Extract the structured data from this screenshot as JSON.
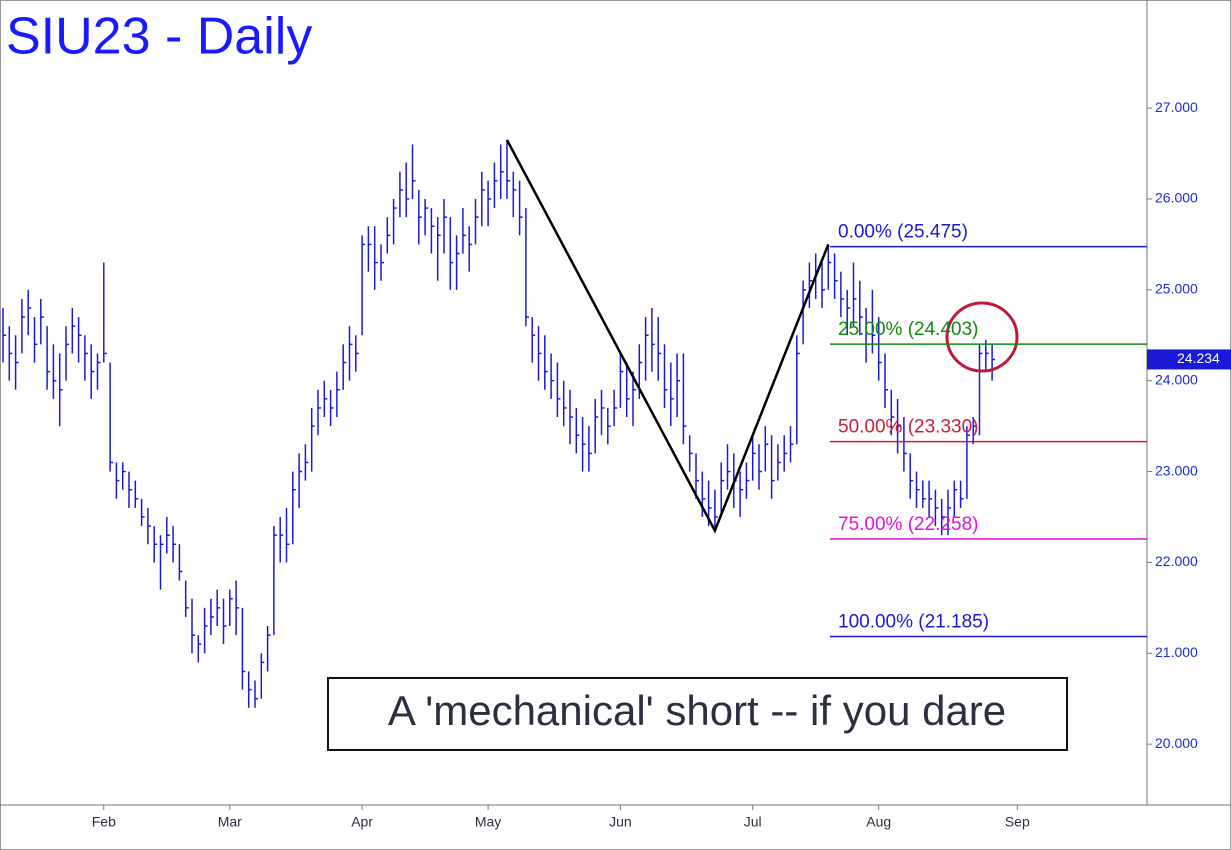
{
  "chart_data": {
    "type": "ohlc",
    "title": "SIU23 - Daily",
    "annotation": "A 'mechanical' short -- if you dare",
    "color": "#1a1ad6",
    "categories": [
      null,
      null,
      null,
      null,
      null,
      null,
      null,
      null,
      null,
      null,
      null,
      null,
      null,
      null,
      null,
      null,
      "Feb",
      null,
      null,
      null,
      null,
      null,
      null,
      null,
      null,
      null,
      null,
      null,
      null,
      null,
      null,
      null,
      null,
      null,
      null,
      null,
      "Mar",
      null,
      null,
      null,
      null,
      null,
      null,
      null,
      null,
      null,
      null,
      null,
      null,
      null,
      null,
      null,
      null,
      null,
      null,
      null,
      null,
      "Apr",
      null,
      null,
      null,
      null,
      null,
      null,
      null,
      null,
      null,
      null,
      null,
      null,
      null,
      null,
      null,
      null,
      null,
      null,
      null,
      "May",
      null,
      null,
      null,
      null,
      null,
      null,
      null,
      null,
      null,
      null,
      null,
      null,
      null,
      null,
      null,
      null,
      null,
      null,
      null,
      null,
      "Jun",
      null,
      null,
      null,
      null,
      null,
      null,
      null,
      null,
      null,
      null,
      null,
      null,
      null,
      null,
      null,
      null,
      null,
      null,
      null,
      null,
      "Jul",
      null,
      null,
      null,
      null,
      null,
      null,
      null,
      null,
      null,
      null,
      null,
      null,
      null,
      null,
      null,
      null,
      null,
      null,
      null,
      "Aug",
      null,
      null,
      null,
      null,
      null,
      null,
      null,
      null,
      null,
      null,
      null,
      null,
      null,
      null,
      null,
      null,
      null,
      null,
      null,
      null,
      null,
      "Sep"
    ],
    "high": [
      24.8,
      24.6,
      24.5,
      24.9,
      25.0,
      24.7,
      24.9,
      24.6,
      24.4,
      24.3,
      24.6,
      24.8,
      24.7,
      24.5,
      24.4,
      24.3,
      25.3,
      24.2,
      23.1,
      23.1,
      23.0,
      22.9,
      22.7,
      22.6,
      22.4,
      22.3,
      22.5,
      22.4,
      22.2,
      21.8,
      21.6,
      21.2,
      21.5,
      21.6,
      21.7,
      21.6,
      21.7,
      21.8,
      21.5,
      20.8,
      20.7,
      21.0,
      21.3,
      22.4,
      22.5,
      22.6,
      23.0,
      23.2,
      23.3,
      23.7,
      23.9,
      24.0,
      23.9,
      24.1,
      24.4,
      24.6,
      24.5,
      25.6,
      25.7,
      25.7,
      25.5,
      25.8,
      26.0,
      26.3,
      26.4,
      26.6,
      26.1,
      26.0,
      25.9,
      25.8,
      26.0,
      25.8,
      25.6,
      25.9,
      25.7,
      26.0,
      26.3,
      26.2,
      26.4,
      26.6,
      26.65,
      26.3,
      26.2,
      25.9,
      24.7,
      24.6,
      24.5,
      24.3,
      24.2,
      24.0,
      23.9,
      23.7,
      23.6,
      23.5,
      23.8,
      23.9,
      23.7,
      23.9,
      24.3,
      24.2,
      24.1,
      24.4,
      24.7,
      24.8,
      24.7,
      24.4,
      24.2,
      24.3,
      24.3,
      23.4,
      23.2,
      23.0,
      22.9,
      22.8,
      23.1,
      23.3,
      23.2,
      23.0,
      23.1,
      23.4,
      23.3,
      23.5,
      23.4,
      23.3,
      23.4,
      23.5,
      24.5,
      25.1,
      25.3,
      25.4,
      25.3,
      25.5,
      25.4,
      25.2,
      25.0,
      25.3,
      25.1,
      24.8,
      25.0,
      24.7,
      24.3,
      23.9,
      23.8,
      23.6,
      23.2,
      23.0,
      22.9,
      22.9,
      22.8,
      22.7,
      22.8,
      22.9,
      22.9,
      23.5,
      23.6,
      24.4,
      24.45,
      24.4,
      null,
      null,
      null,
      null
    ],
    "low": [
      24.2,
      24.0,
      23.9,
      24.3,
      24.5,
      24.2,
      24.4,
      23.9,
      23.8,
      23.5,
      24.0,
      24.3,
      24.2,
      24.0,
      23.8,
      23.9,
      24.2,
      23.0,
      22.7,
      22.8,
      22.6,
      22.6,
      22.4,
      22.2,
      22.0,
      21.7,
      22.1,
      22.0,
      21.8,
      21.4,
      21.0,
      20.9,
      21.0,
      21.2,
      21.3,
      21.1,
      21.3,
      21.2,
      20.6,
      20.4,
      20.4,
      20.5,
      20.8,
      21.2,
      22.0,
      22.0,
      22.2,
      22.6,
      22.9,
      23.0,
      23.4,
      23.6,
      23.5,
      23.6,
      23.9,
      24.0,
      24.1,
      24.5,
      25.2,
      25.0,
      25.1,
      25.4,
      25.5,
      25.8,
      25.8,
      26.0,
      25.5,
      25.6,
      25.4,
      25.1,
      25.4,
      25.0,
      25.0,
      25.4,
      25.2,
      25.5,
      25.7,
      25.7,
      25.9,
      26.0,
      26.0,
      25.8,
      25.6,
      24.6,
      24.2,
      24.0,
      23.9,
      23.8,
      23.6,
      23.5,
      23.3,
      23.2,
      23.0,
      23.0,
      23.2,
      23.4,
      23.3,
      23.5,
      23.7,
      23.6,
      23.5,
      23.8,
      24.0,
      24.1,
      24.0,
      23.7,
      23.5,
      23.6,
      23.3,
      23.0,
      22.7,
      22.5,
      22.4,
      22.35,
      22.5,
      22.8,
      22.6,
      22.5,
      22.7,
      22.9,
      22.8,
      23.0,
      22.7,
      22.9,
      23.0,
      23.1,
      23.3,
      24.4,
      24.8,
      24.9,
      24.8,
      25.0,
      24.9,
      24.7,
      24.5,
      24.6,
      24.5,
      24.2,
      24.3,
      24.0,
      23.7,
      23.4,
      23.2,
      23.0,
      22.7,
      22.6,
      22.6,
      22.5,
      22.4,
      22.3,
      22.3,
      22.5,
      22.6,
      22.7,
      23.3,
      23.4,
      24.1,
      24.0,
      null,
      null,
      null,
      null
    ],
    "close": [
      24.5,
      24.3,
      24.2,
      24.7,
      24.8,
      24.4,
      24.7,
      24.1,
      24.0,
      23.9,
      24.4,
      24.6,
      24.5,
      24.3,
      24.1,
      24.2,
      24.3,
      23.1,
      22.9,
      23.0,
      22.8,
      22.7,
      22.5,
      22.4,
      22.2,
      22.2,
      22.3,
      22.2,
      21.9,
      21.5,
      21.2,
      21.1,
      21.3,
      21.4,
      21.5,
      21.3,
      21.6,
      21.5,
      20.8,
      20.6,
      20.5,
      20.9,
      21.2,
      22.3,
      22.3,
      22.2,
      22.8,
      23.0,
      23.1,
      23.5,
      23.7,
      23.8,
      23.7,
      23.9,
      24.2,
      24.4,
      24.3,
      25.5,
      25.5,
      25.3,
      25.3,
      25.6,
      25.9,
      26.1,
      26.0,
      26.2,
      25.8,
      25.9,
      25.7,
      25.6,
      25.8,
      25.3,
      25.4,
      25.6,
      25.5,
      25.8,
      26.1,
      26.0,
      26.2,
      26.3,
      26.2,
      26.1,
      25.8,
      24.7,
      24.5,
      24.3,
      24.1,
      24.0,
      23.8,
      23.7,
      23.6,
      23.4,
      23.3,
      23.2,
      23.6,
      23.7,
      23.5,
      23.7,
      24.1,
      23.8,
      23.9,
      24.2,
      24.5,
      24.4,
      24.3,
      23.9,
      23.8,
      24.0,
      23.5,
      23.2,
      22.9,
      22.7,
      22.6,
      22.5,
      22.9,
      23.0,
      22.9,
      22.8,
      22.9,
      23.2,
      23.0,
      23.3,
      22.9,
      23.1,
      23.2,
      23.3,
      24.3,
      25.0,
      25.1,
      25.2,
      25.0,
      25.3,
      25.1,
      24.9,
      24.8,
      24.9,
      24.7,
      24.4,
      24.5,
      24.2,
      23.9,
      23.6,
      23.5,
      23.2,
      22.9,
      22.8,
      22.7,
      22.7,
      22.6,
      22.5,
      22.6,
      22.8,
      22.7,
      23.4,
      23.5,
      24.3,
      24.3,
      24.234,
      null,
      null,
      null,
      null
    ],
    "last_price": 24.234,
    "pattern": {
      "color": "#000000",
      "values": [
        26.65,
        22.35,
        25.5
      ]
    },
    "levels": [
      {
        "value": 25.475,
        "label": "0.00% (25.475)",
        "color": "#1a1ad6"
      },
      {
        "value": 24.403,
        "label": "25.00% (24.403)",
        "color": "#108a10"
      },
      {
        "value": 23.33,
        "label": "50.00% (23.330)",
        "color": "#c8203a"
      },
      {
        "value": 22.258,
        "label": "75.00% (22.258)",
        "color": "#e010e0"
      },
      {
        "value": 21.185,
        "label": "100.00% (21.185)",
        "color": "#1a1ad6"
      }
    ],
    "ylim": [
      19.33,
      28.19
    ],
    "yticks": [
      {
        "value": 20,
        "label": "20.000"
      },
      {
        "value": 21,
        "label": "21.000"
      },
      {
        "value": 22,
        "label": "22.000"
      },
      {
        "value": 23,
        "label": "23.000"
      },
      {
        "value": 24,
        "label": "24.000"
      },
      {
        "value": 25,
        "label": "25.000"
      },
      {
        "value": 26,
        "label": "26.000"
      },
      {
        "value": 27,
        "label": "27.000"
      }
    ]
  }
}
